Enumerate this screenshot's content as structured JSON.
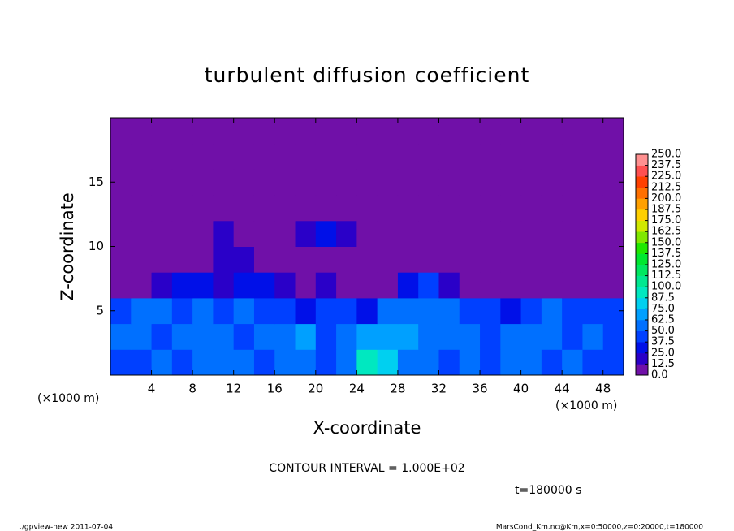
{
  "chart_data": {
    "type": "heatmap",
    "title": "turbulent diffusion coefficient",
    "xlabel": "X-coordinate",
    "ylabel": "Z-coordinate",
    "x_unit": "(×1000 m)",
    "y_unit": "(×1000 m)",
    "xlim": [
      0,
      50
    ],
    "ylim": [
      0,
      20
    ],
    "xticks": [
      4,
      8,
      12,
      16,
      20,
      24,
      28,
      32,
      36,
      40,
      44,
      48
    ],
    "yticks": [
      5,
      10,
      15
    ],
    "x": [
      1,
      3,
      5,
      7,
      9,
      11,
      13,
      15,
      17,
      19,
      21,
      23,
      25,
      27,
      29,
      31,
      33,
      35,
      37,
      39,
      41,
      43,
      45,
      47,
      49
    ],
    "y": [
      1,
      3,
      5,
      7,
      9,
      11,
      13,
      15,
      17,
      19
    ],
    "values": [
      [
        45,
        40,
        50,
        45,
        55,
        50,
        60,
        45,
        55,
        50,
        45,
        60,
        90,
        75,
        60,
        55,
        45,
        50,
        40,
        55,
        50,
        45,
        50,
        45,
        40
      ],
      [
        50,
        55,
        45,
        60,
        50,
        55,
        45,
        60,
        55,
        65,
        45,
        55,
        65,
        70,
        70,
        55,
        50,
        60,
        45,
        50,
        55,
        60,
        45,
        50,
        45
      ],
      [
        45,
        50,
        55,
        45,
        50,
        40,
        55,
        45,
        40,
        35,
        40,
        45,
        35,
        50,
        55,
        60,
        55,
        45,
        40,
        35,
        45,
        50,
        40,
        45,
        45
      ],
      [
        5,
        10,
        15,
        25,
        30,
        20,
        30,
        25,
        15,
        10,
        15,
        8,
        5,
        5,
        35,
        40,
        20,
        8,
        5,
        5,
        5,
        8,
        5,
        5,
        5
      ],
      [
        3,
        3,
        5,
        8,
        10,
        15,
        20,
        10,
        5,
        10,
        8,
        5,
        5,
        3,
        3,
        5,
        3,
        5,
        3,
        3,
        5,
        3,
        3,
        3,
        3
      ],
      [
        2,
        3,
        3,
        5,
        5,
        15,
        8,
        5,
        10,
        20,
        30,
        15,
        3,
        2,
        5,
        5,
        8,
        3,
        3,
        5,
        3,
        3,
        5,
        3,
        2
      ],
      [
        2,
        2,
        2,
        3,
        2,
        2,
        3,
        2,
        2,
        3,
        2,
        2,
        2,
        2,
        3,
        5,
        3,
        2,
        2,
        2,
        3,
        2,
        2,
        2,
        2
      ],
      [
        2,
        2,
        2,
        2,
        2,
        2,
        2,
        2,
        2,
        3,
        2,
        2,
        2,
        2,
        2,
        2,
        2,
        2,
        2,
        2,
        2,
        2,
        2,
        2,
        2
      ],
      [
        2,
        2,
        2,
        2,
        2,
        2,
        2,
        2,
        2,
        2,
        2,
        2,
        2,
        2,
        2,
        2,
        2,
        2,
        2,
        2,
        2,
        2,
        2,
        2,
        2
      ],
      [
        2,
        2,
        2,
        2,
        2,
        2,
        2,
        2,
        2,
        2,
        2,
        2,
        2,
        2,
        2,
        2,
        2,
        2,
        2,
        2,
        2,
        2,
        2,
        2,
        2
      ]
    ],
    "colorbar": {
      "levels": [
        {
          "value": 0,
          "label": "0.0"
        },
        {
          "value": 12.5,
          "label": "12.5"
        },
        {
          "value": 25,
          "label": "25.0"
        },
        {
          "value": 37.5,
          "label": "37.5"
        },
        {
          "value": 50,
          "label": "50.0"
        },
        {
          "value": 62.5,
          "label": "62.5"
        },
        {
          "value": 75,
          "label": "75.0"
        },
        {
          "value": 87.5,
          "label": "87.5"
        },
        {
          "value": 100,
          "label": "100.0"
        },
        {
          "value": 112.5,
          "label": "112.5"
        },
        {
          "value": 125,
          "label": "125.0"
        },
        {
          "value": 137.5,
          "label": "137.5"
        },
        {
          "value": 150,
          "label": "150.0"
        },
        {
          "value": 162.5,
          "label": "162.5"
        },
        {
          "value": 175,
          "label": "175.0"
        },
        {
          "value": 187.5,
          "label": "187.5"
        },
        {
          "value": 200,
          "label": "200.0"
        },
        {
          "value": 212.5,
          "label": "212.5"
        },
        {
          "value": 225,
          "label": "225.0"
        },
        {
          "value": 237.5,
          "label": "237.5"
        },
        {
          "value": 250,
          "label": "250.0"
        }
      ],
      "colors": [
        "#7010a8",
        "#2a00c8",
        "#0010e8",
        "#0040ff",
        "#0070ff",
        "#00a0ff",
        "#00d0f0",
        "#00e8c0",
        "#00e890",
        "#00e860",
        "#00e830",
        "#20e800",
        "#80e800",
        "#d0e800",
        "#ffd000",
        "#ffa000",
        "#ff7000",
        "#ff4000",
        "#ff5050",
        "#ff9090"
      ]
    },
    "annotations": [
      "CONTOUR INTERVAL = 1.000E+02",
      "t=180000 s",
      "./gpview-new   2011-07-04",
      "MarsCond_Km.nc@Km,x=0:50000,z=0:20000,t=180000"
    ]
  }
}
